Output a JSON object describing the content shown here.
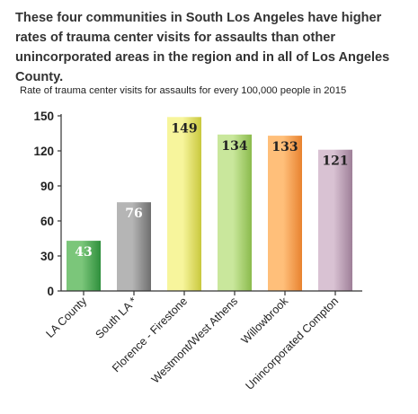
{
  "headline": "These four communities in South Los Angeles have higher rates of trauma center visits for assaults than other unincorporated areas in the region and in all of Los Angeles County.",
  "chart_data": {
    "type": "bar",
    "title": "Rate of trauma center visits for assaults for every 100,000 people in 2015",
    "categories": [
      "LA County",
      "South LA *",
      "Florence - Firestone",
      "Westmont/West Athens",
      "Willowbrook",
      "Unincorporated Compton"
    ],
    "values": [
      43,
      76,
      149,
      134,
      133,
      121
    ],
    "data_labels": [
      "43",
      "76",
      "149",
      "134",
      "133",
      "121"
    ],
    "yticks": [
      0,
      30,
      60,
      90,
      120,
      150
    ],
    "ylim": [
      0,
      150
    ],
    "grid": false,
    "legend": "none",
    "colors": [
      {
        "light": "#7bc67a",
        "dark": "#2e8f3c"
      },
      {
        "light": "#b5b5b5",
        "dark": "#6f6f6f"
      },
      {
        "light": "#f7f59c",
        "dark": "#c9c83d"
      },
      {
        "light": "#c9e79c",
        "dark": "#8bbb4c"
      },
      {
        "light": "#ffbf7a",
        "dark": "#e8822f"
      },
      {
        "light": "#d9c2d3",
        "dark": "#9e7f98"
      }
    ],
    "label_colors": [
      "#ffffff",
      "#ffffff",
      "#222222",
      "#222222",
      "#222222",
      "#222222"
    ],
    "axis_color": "#333333"
  }
}
